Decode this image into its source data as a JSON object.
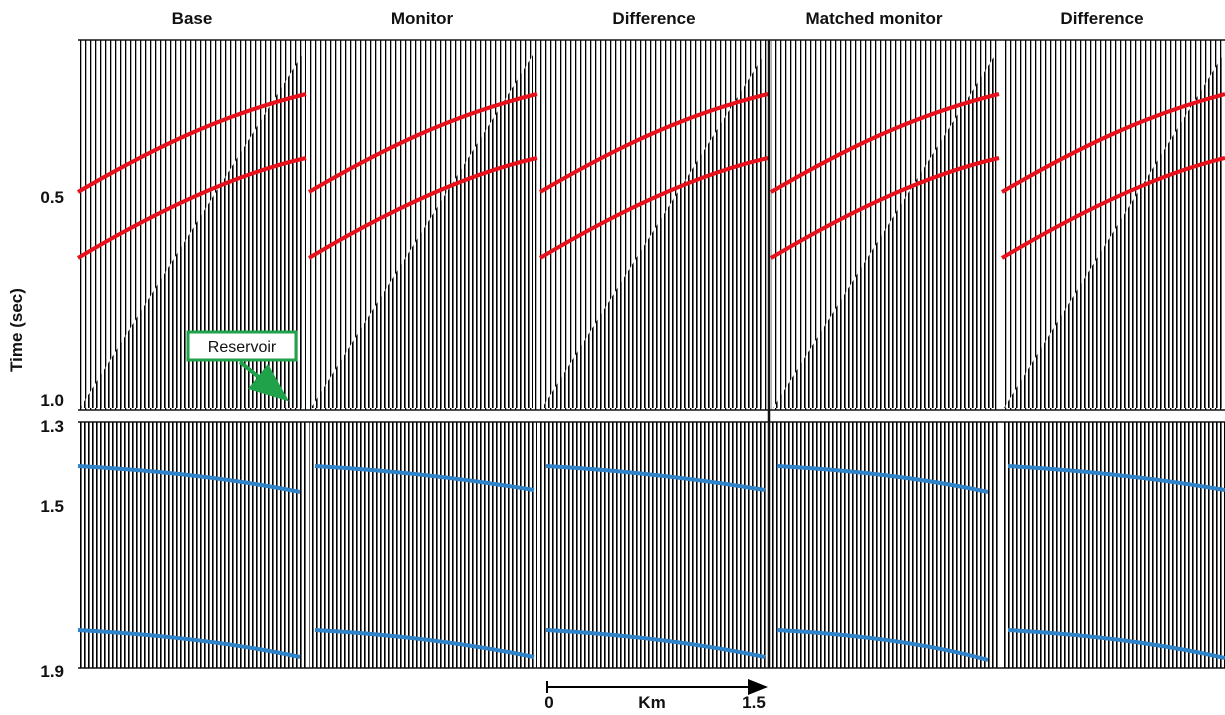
{
  "panel_titles": [
    "Base",
    "Monitor",
    "Difference",
    "Matched monitor",
    "Difference"
  ],
  "y_axis": {
    "label": "Time (sec)",
    "upper_ticks": [
      "0.5",
      "1.0"
    ],
    "lower_ticks": [
      "1.3",
      "1.5",
      "1.9"
    ]
  },
  "annotation": {
    "text": "Reservoir",
    "box_color": "#1fa24a"
  },
  "scale_bar": {
    "start": "0",
    "unit": "Km",
    "end": "1.5"
  },
  "colors": {
    "upper_horizons": "#e8111b",
    "lower_horizons": "#2f83c8",
    "trace_black": "#000000"
  }
}
